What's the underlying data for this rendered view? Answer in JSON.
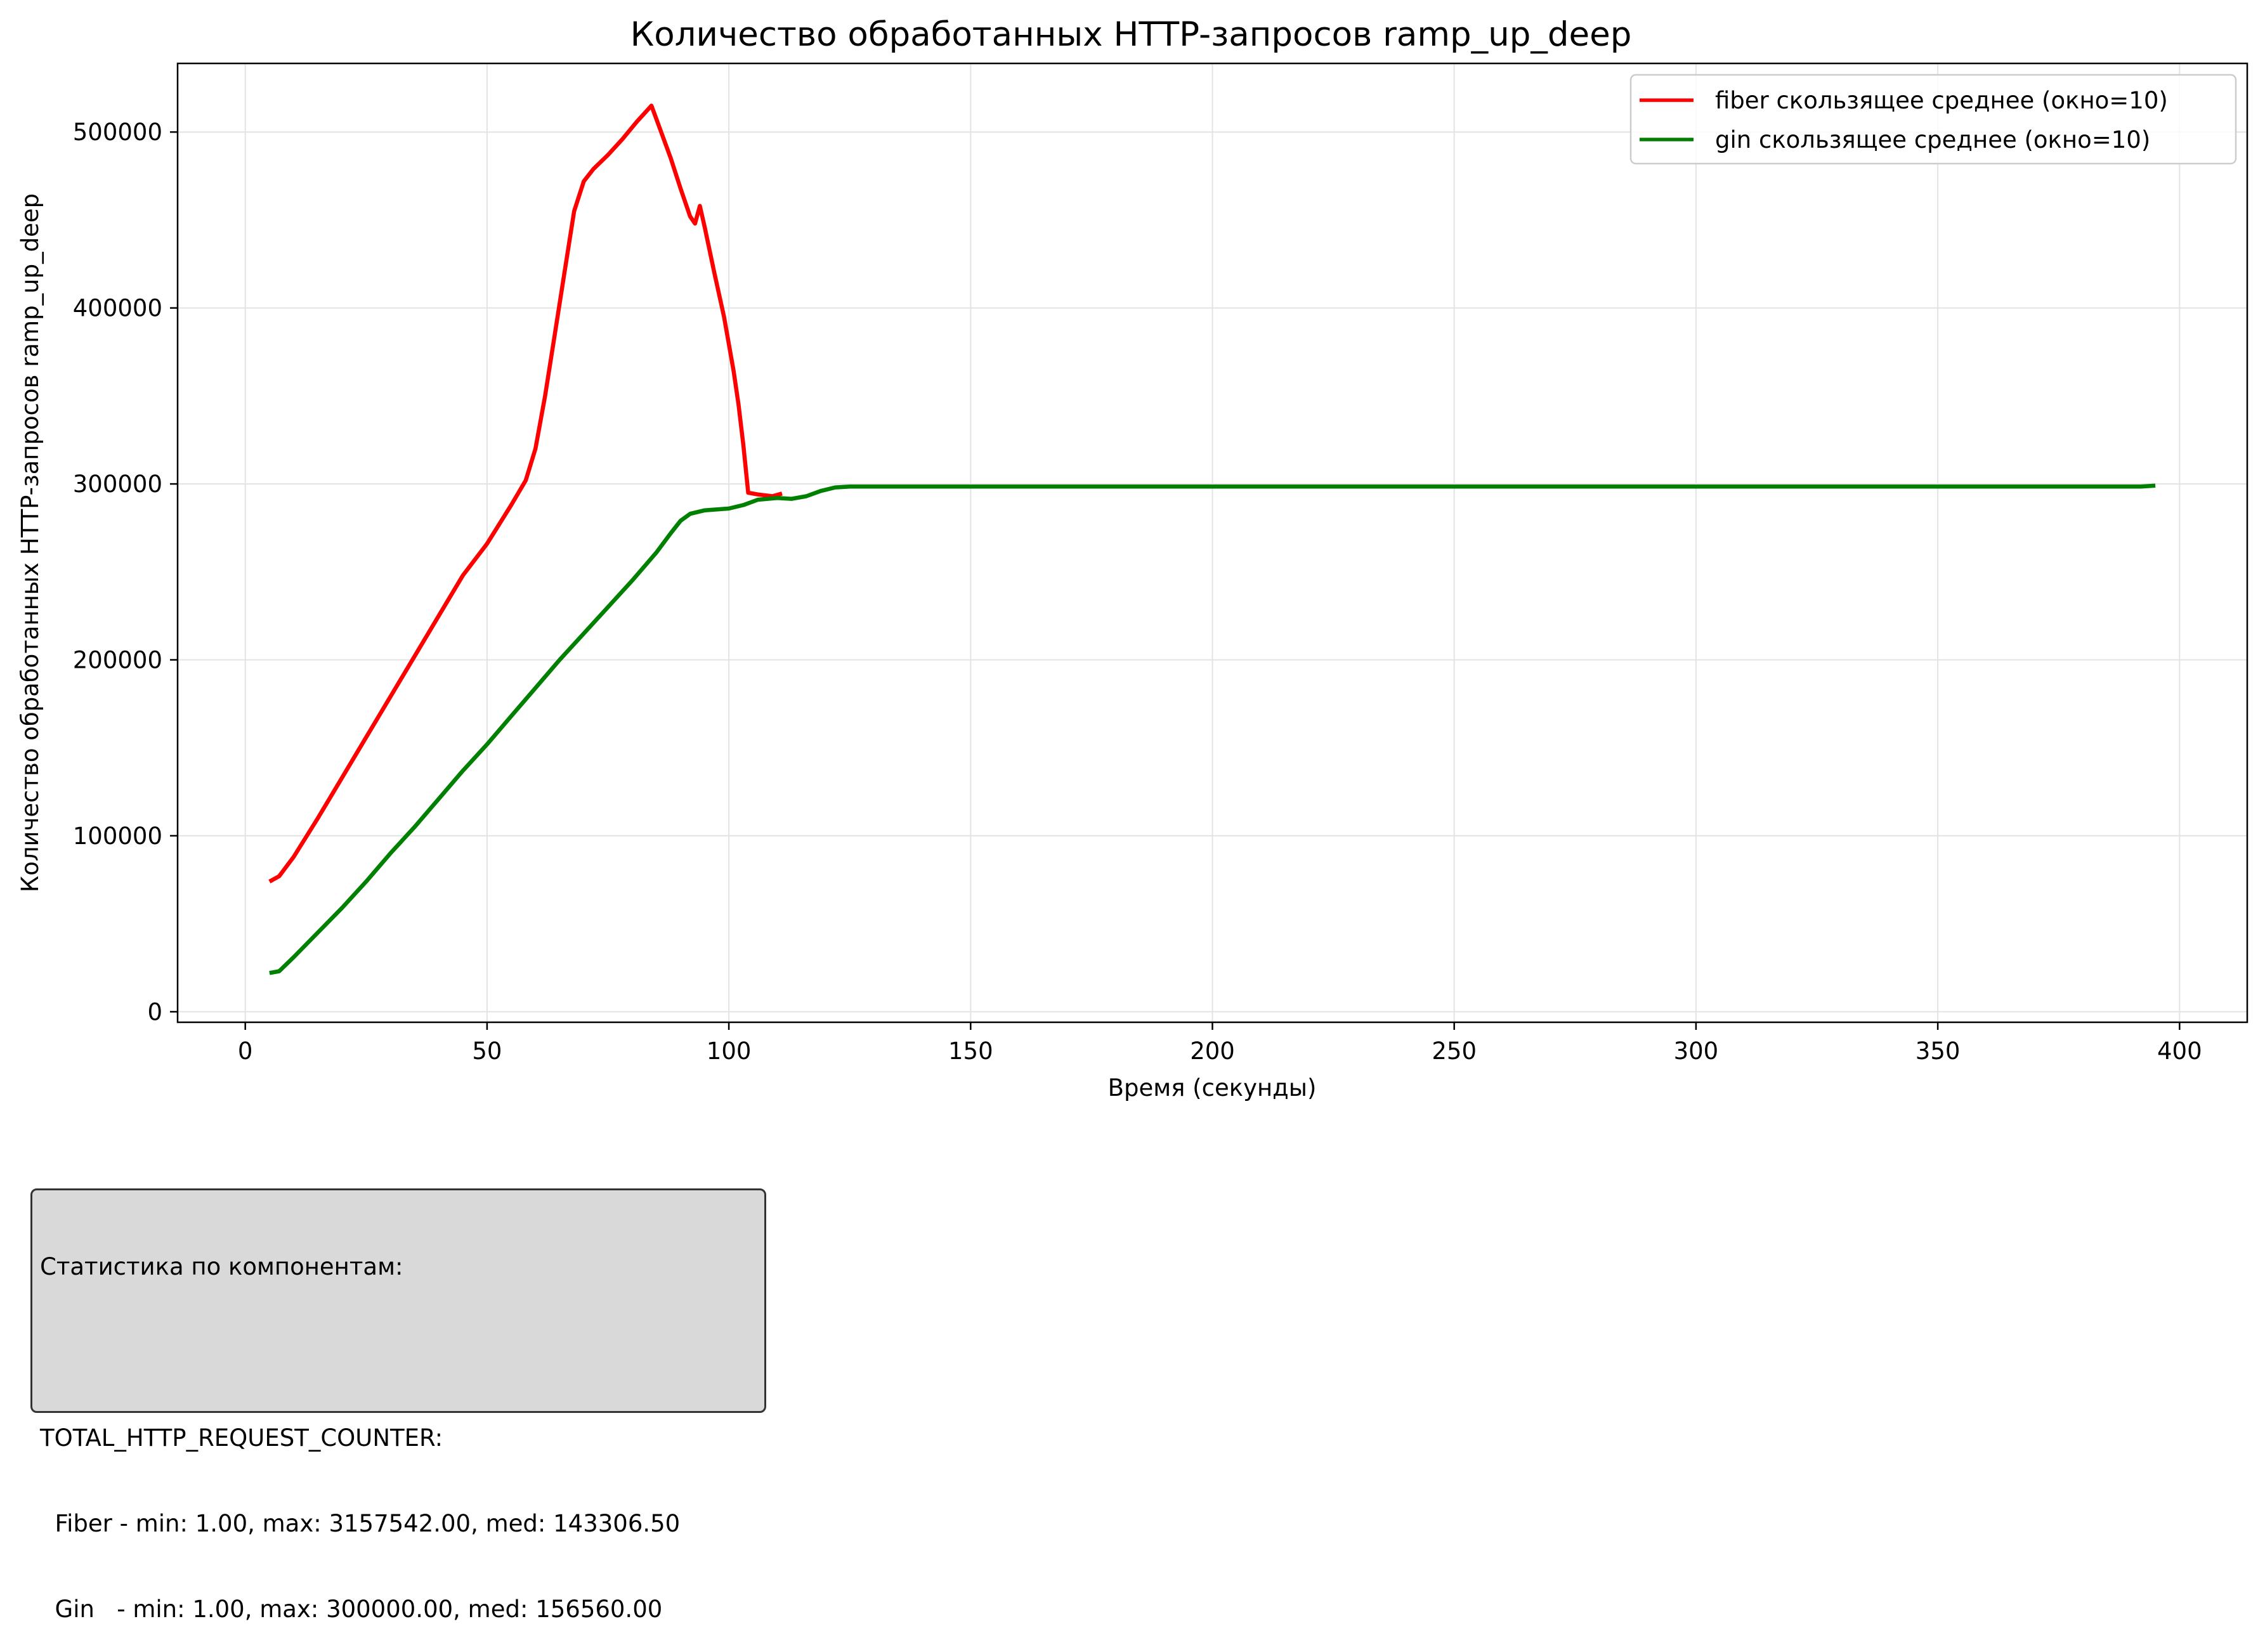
{
  "chart_data": {
    "type": "line",
    "title": "Количество обработанных HTTP-запросов ramp_up_deep",
    "xlabel": "Время (секунды)",
    "ylabel": "Количество обработанных HTTP-запросов ramp_up_deep",
    "xlim": [
      -14,
      414
    ],
    "ylim": [
      -6000,
      539000
    ],
    "x_ticks": [
      0,
      50,
      100,
      150,
      200,
      250,
      300,
      350,
      400
    ],
    "x_tick_labels": [
      "0",
      "50",
      "100",
      "150",
      "200",
      "250",
      "300",
      "350",
      "400"
    ],
    "y_ticks": [
      0,
      100000,
      200000,
      300000,
      400000,
      500000
    ],
    "y_tick_labels": [
      "0",
      "100000",
      "200000",
      "300000",
      "400000",
      "500000"
    ],
    "grid": true,
    "legend_position": "top-right",
    "series": [
      {
        "name": "fiber скользящее среднее (окно=10)",
        "color": "#ff0000",
        "points": [
          [
            5,
            74000
          ],
          [
            7,
            77000
          ],
          [
            10,
            88000
          ],
          [
            15,
            110000
          ],
          [
            20,
            133000
          ],
          [
            25,
            156000
          ],
          [
            30,
            179000
          ],
          [
            35,
            202000
          ],
          [
            40,
            225000
          ],
          [
            45,
            248000
          ],
          [
            50,
            266000
          ],
          [
            55,
            288000
          ],
          [
            58,
            302000
          ],
          [
            60,
            320000
          ],
          [
            62,
            350000
          ],
          [
            64,
            385000
          ],
          [
            66,
            420000
          ],
          [
            68,
            455000
          ],
          [
            70,
            472000
          ],
          [
            72,
            479000
          ],
          [
            75,
            487000
          ],
          [
            78,
            496000
          ],
          [
            81,
            506000
          ],
          [
            84,
            515000
          ],
          [
            86,
            500000
          ],
          [
            88,
            485000
          ],
          [
            90,
            468000
          ],
          [
            92,
            452000
          ],
          [
            93,
            448000
          ],
          [
            94,
            458000
          ],
          [
            95,
            446000
          ],
          [
            97,
            420000
          ],
          [
            99,
            395000
          ],
          [
            101,
            364000
          ],
          [
            102,
            345000
          ],
          [
            103,
            322000
          ],
          [
            104,
            295000
          ],
          [
            106,
            294000
          ],
          [
            109,
            293000
          ],
          [
            111,
            294500
          ]
        ]
      },
      {
        "name": "gin скользящее среднее (окно=10)",
        "color": "#008000",
        "points": [
          [
            5,
            22000
          ],
          [
            7,
            23000
          ],
          [
            10,
            31000
          ],
          [
            15,
            45000
          ],
          [
            20,
            59000
          ],
          [
            25,
            74000
          ],
          [
            30,
            90000
          ],
          [
            35,
            105000
          ],
          [
            40,
            121000
          ],
          [
            45,
            137000
          ],
          [
            50,
            152000
          ],
          [
            55,
            168000
          ],
          [
            60,
            184000
          ],
          [
            65,
            200000
          ],
          [
            70,
            215000
          ],
          [
            75,
            230000
          ],
          [
            80,
            245000
          ],
          [
            85,
            261000
          ],
          [
            88,
            272000
          ],
          [
            90,
            279000
          ],
          [
            92,
            283000
          ],
          [
            95,
            285000
          ],
          [
            100,
            286000
          ],
          [
            103,
            288000
          ],
          [
            106,
            291000
          ],
          [
            110,
            292000
          ],
          [
            113,
            291500
          ],
          [
            116,
            293000
          ],
          [
            119,
            296000
          ],
          [
            122,
            298000
          ],
          [
            125,
            298500
          ],
          [
            150,
            298500
          ],
          [
            200,
            298500
          ],
          [
            250,
            298500
          ],
          [
            300,
            298500
          ],
          [
            350,
            298500
          ],
          [
            392,
            298500
          ],
          [
            395,
            299000
          ]
        ]
      }
    ]
  },
  "stats": {
    "lines": [
      "Статистика по компонентам:",
      "",
      "TOTAL_HTTP_REQUEST_COUNTER:",
      "  Fiber - min: 1.00, max: 3157542.00, med: 143306.50",
      "  Gin   - min: 1.00, max: 300000.00, med: 156560.00"
    ]
  }
}
